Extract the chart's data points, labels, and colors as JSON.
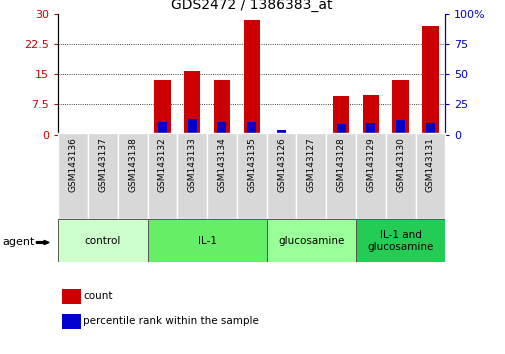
{
  "title": "GDS2472 / 1386383_at",
  "samples": [
    "GSM143136",
    "GSM143137",
    "GSM143138",
    "GSM143132",
    "GSM143133",
    "GSM143134",
    "GSM143135",
    "GSM143126",
    "GSM143127",
    "GSM143128",
    "GSM143129",
    "GSM143130",
    "GSM143131"
  ],
  "count_values": [
    0.15,
    0.15,
    0.15,
    13.5,
    15.8,
    13.5,
    28.5,
    0.15,
    0.15,
    9.5,
    9.8,
    13.5,
    27.0
  ],
  "percentile_values": [
    0.9,
    0.1,
    0.1,
    10.5,
    12.5,
    10.5,
    10.5,
    3.5,
    0.5,
    9.0,
    9.5,
    12.0,
    9.5
  ],
  "groups": [
    {
      "label": "control",
      "start": 0,
      "end": 3,
      "color": "#ccffcc"
    },
    {
      "label": "IL-1",
      "start": 3,
      "end": 7,
      "color": "#66ee66"
    },
    {
      "label": "glucosamine",
      "start": 7,
      "end": 10,
      "color": "#99ff99"
    },
    {
      "label": "IL-1 and\nglucosamine",
      "start": 10,
      "end": 13,
      "color": "#22cc55"
    }
  ],
  "ylim_left": [
    0,
    30
  ],
  "ylim_right": [
    0,
    100
  ],
  "yticks_left": [
    0,
    7.5,
    15,
    22.5,
    30
  ],
  "yticks_right": [
    0,
    25,
    50,
    75,
    100
  ],
  "count_color": "#cc0000",
  "percentile_color": "#0000cc",
  "left_axis_color": "#cc0000",
  "right_axis_color": "#0000cc"
}
